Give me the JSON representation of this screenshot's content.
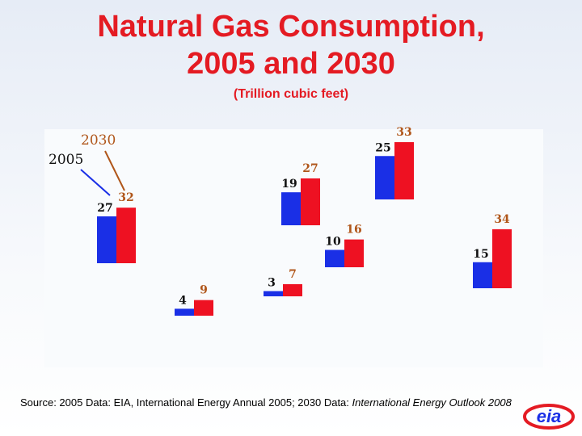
{
  "slide": {
    "title_line1": "Natural Gas Consumption,",
    "title_line2": "2005 and 2030",
    "subtitle": "(Trillion cubic feet)",
    "source_prefix": "Source:  2005 Data: EIA, International Energy Annual 2005; 2030 Data: ",
    "source_italic": "International Energy Outlook 2008",
    "logo_text": "eia"
  },
  "colors": {
    "y2005": "#1a2fe6",
    "y2030": "#ee1122",
    "title": "#e41b23",
    "legend_2005_text": "#111111",
    "legend_2030_text": "#b0561a"
  },
  "chart_data": {
    "type": "bar",
    "title": "Natural Gas Consumption, 2005 and 2030",
    "subtitle": "(Trillion cubic feet)",
    "legend": [
      "2005",
      "2030"
    ],
    "legend_placement": "top-left",
    "series": [
      {
        "name": "2005",
        "values": [
          27,
          4,
          3,
          19,
          10,
          25,
          15
        ]
      },
      {
        "name": "2030",
        "values": [
          32,
          9,
          7,
          27,
          16,
          33,
          34
        ]
      }
    ],
    "categories": [
      "",
      "",
      "",
      "",
      "",
      "",
      ""
    ],
    "xlabel": "",
    "ylabel": "Trillion cubic feet"
  }
}
